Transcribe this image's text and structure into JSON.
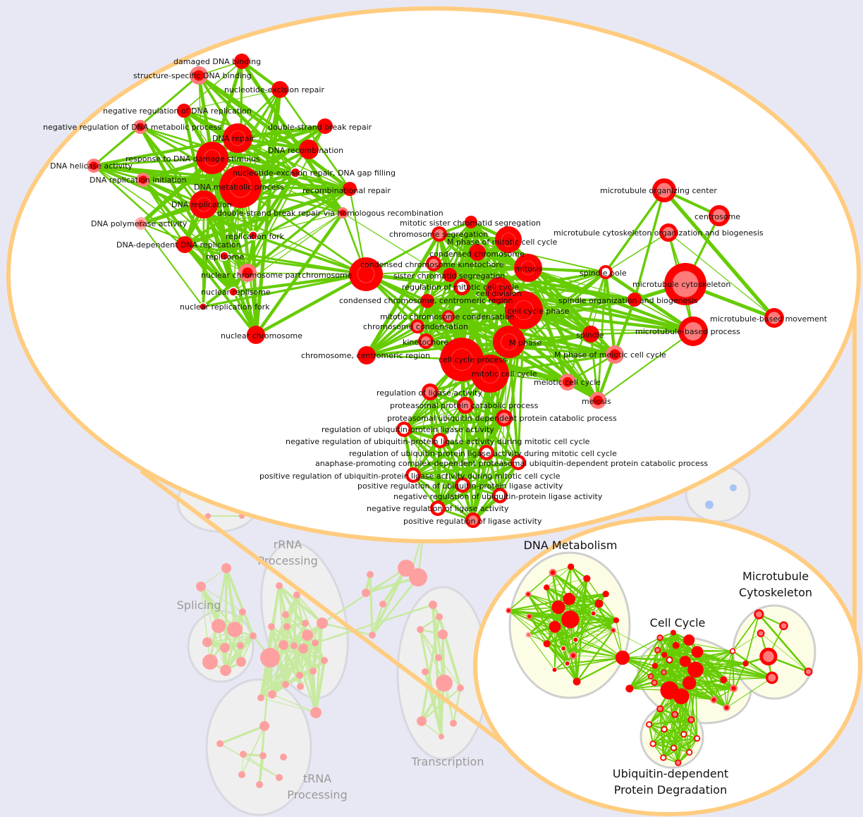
{
  "colors": {
    "background": "#e8e8f4",
    "callout_outline": "#ffcc80",
    "edge": "#66cc00",
    "node_red": "#ff0000",
    "node_pink": "#ff7a7a",
    "background_node": "#ffa0a0",
    "background_edge": "#c8eaa0",
    "cluster_fill": "#fdfde6"
  },
  "background_clusters": [
    {
      "label_lines": [
        "rRNA",
        "Processing"
      ]
    },
    {
      "label_lines": [
        "Splicing"
      ]
    },
    {
      "label_lines": [
        "tRNA",
        "Processing"
      ]
    },
    {
      "label_lines": [
        "Transcription"
      ]
    }
  ],
  "inset_clusters": [
    {
      "label_lines": [
        "DNA Metabolism"
      ]
    },
    {
      "label_lines": [
        "Microtubule",
        "Cytoskeleton"
      ]
    },
    {
      "label_lines": [
        "Cell Cycle"
      ]
    },
    {
      "label_lines": [
        "Ubiquitin-dependent",
        "Protein Degradation"
      ]
    }
  ],
  "nodes": [
    {
      "label": "damaged DNA binding",
      "style": "solid"
    },
    {
      "label": "structure-specific DNA binding",
      "style": "light"
    },
    {
      "label": "nucleotide-excision repair",
      "style": "solid"
    },
    {
      "label": "negative regulation of DNA replication",
      "style": "solid"
    },
    {
      "label": "negative regulation of DNA metabolic process",
      "style": "light"
    },
    {
      "label": "DNA repair",
      "style": "solid"
    },
    {
      "label": "double-strand break repair",
      "style": "solid"
    },
    {
      "label": "response to DNA damage stimulus",
      "style": "solid"
    },
    {
      "label": "DNA recombination",
      "style": "solid"
    },
    {
      "label": "DNA helicase activity",
      "style": "light"
    },
    {
      "label": "nucleotide-excision repair, DNA gap filling",
      "style": "dot"
    },
    {
      "label": "DNA replication initiation",
      "style": "light"
    },
    {
      "label": "DNA metabolic process",
      "style": "solid"
    },
    {
      "label": "recombinational repair",
      "style": "solid"
    },
    {
      "label": "DNA replication",
      "style": "solid"
    },
    {
      "label": "double-strand break repair via homologous recombination",
      "style": "light"
    },
    {
      "label": "DNA polymerase activity",
      "style": "pale"
    },
    {
      "label": "replication fork",
      "style": "dot"
    },
    {
      "label": "DNA-dependent DNA replication",
      "style": "solid"
    },
    {
      "label": "replisome",
      "style": "dot"
    },
    {
      "label": "nuclear chromosome part",
      "style": "light"
    },
    {
      "label": "nuclear replisome",
      "style": "dot"
    },
    {
      "label": "nuclear replication fork",
      "style": "dot"
    },
    {
      "label": "nuclear chromosome",
      "style": "solid"
    },
    {
      "label": "chromosome",
      "style": "solid"
    },
    {
      "label": "mitotic sister chromatid segregation",
      "style": "solid"
    },
    {
      "label": "chromosome segregation",
      "style": "pink"
    },
    {
      "label": "M phase of mitotic cell cycle",
      "style": "solid"
    },
    {
      "label": "condensed chromosome",
      "style": "solid"
    },
    {
      "label": "condensed chromosome kinetochore",
      "style": "pink"
    },
    {
      "label": "mitosis",
      "style": "solid"
    },
    {
      "label": "sister chromatid segregation",
      "style": "solid"
    },
    {
      "label": "regulation of mitotic cell cycle",
      "style": "ring"
    },
    {
      "label": "cell division",
      "style": "solid"
    },
    {
      "label": "condensed chromosome, centromeric region",
      "style": "solid"
    },
    {
      "label": "cell cycle phase",
      "style": "solid"
    },
    {
      "label": "mitotic chromosome condensation",
      "style": "pink"
    },
    {
      "label": "chromosome condensation",
      "style": "pink"
    },
    {
      "label": "kinetochore",
      "style": "pink"
    },
    {
      "label": "M phase",
      "style": "solid"
    },
    {
      "label": "chromosome, centromeric region",
      "style": "solid"
    },
    {
      "label": "cell cycle process",
      "style": "solid"
    },
    {
      "label": "mitotic cell cycle",
      "style": "solid"
    },
    {
      "label": "regulation of ligase activity",
      "style": "pink"
    },
    {
      "label": "proteasomal protein catabolic process",
      "style": "pink"
    },
    {
      "label": "proteasomal ubiquitin-dependent protein catabolic process",
      "style": "pink"
    },
    {
      "label": "regulation of ubiquitin-protein ligase activity",
      "style": "ring"
    },
    {
      "label": "negative regulation of ubiquitin-protein ligase activity during mitotic cell cycle",
      "style": "ring"
    },
    {
      "label": "regulation of ubiquitin-protein ligase activity during mitotic cell cycle",
      "style": "ring"
    },
    {
      "label": "anaphase-promoting complex-dependent proteasomal ubiquitin-dependent protein catabolic process",
      "style": "ring"
    },
    {
      "label": "positive regulation of ubiquitin-protein ligase activity during mitotic cell cycle",
      "style": "ring"
    },
    {
      "label": "positive regulation of ubiquitin-protein ligase activity",
      "style": "ring"
    },
    {
      "label": "negative regulation of ubiquitin-protein ligase activity",
      "style": "ring"
    },
    {
      "label": "negative regulation of ligase activity",
      "style": "ring"
    },
    {
      "label": "positive regulation of ligase activity",
      "style": "pink"
    },
    {
      "label": "microtubule organizing center",
      "style": "pink"
    },
    {
      "label": "centrosome",
      "style": "pink"
    },
    {
      "label": "microtubule cytoskeleton organization and biogenesis",
      "style": "pink"
    },
    {
      "label": "spindle pole",
      "style": "ring"
    },
    {
      "label": "microtubule cytoskeleton",
      "style": "pink"
    },
    {
      "label": "spindle organization and biogenesis",
      "style": "solid"
    },
    {
      "label": "microtubule-based movement",
      "style": "pink"
    },
    {
      "label": "microtubule-based process",
      "style": "pink"
    },
    {
      "label": "spindle",
      "style": "solid"
    },
    {
      "label": "M phase of meiotic cell cycle",
      "style": "light"
    },
    {
      "label": "meiotic cell cycle",
      "style": "light"
    },
    {
      "label": "meiosis",
      "style": "light"
    }
  ]
}
